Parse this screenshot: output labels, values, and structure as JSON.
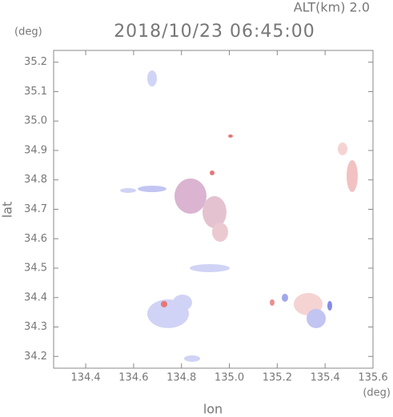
{
  "chart_data": {
    "type": "map",
    "title": "2018/10/23 06:45:00",
    "subtitle": "ALT(km) 2.0",
    "x_label": "lon",
    "y_label": "lat",
    "x_unit": "(deg)",
    "y_unit": "(deg)",
    "xlim": [
      134.266,
      135.6
    ],
    "ylim": [
      34.16,
      35.24
    ],
    "xticks": [
      134.4,
      134.6,
      134.8,
      {
        "value": 135,
        "label": "135.0"
      },
      135.2,
      135.4,
      135.6
    ],
    "yticks": [
      34.2,
      34.3,
      34.4,
      34.5,
      34.6,
      34.7,
      34.8,
      34.9,
      {
        "value": 35,
        "label": "35.0"
      },
      35.1,
      35.2
    ]
  }
}
